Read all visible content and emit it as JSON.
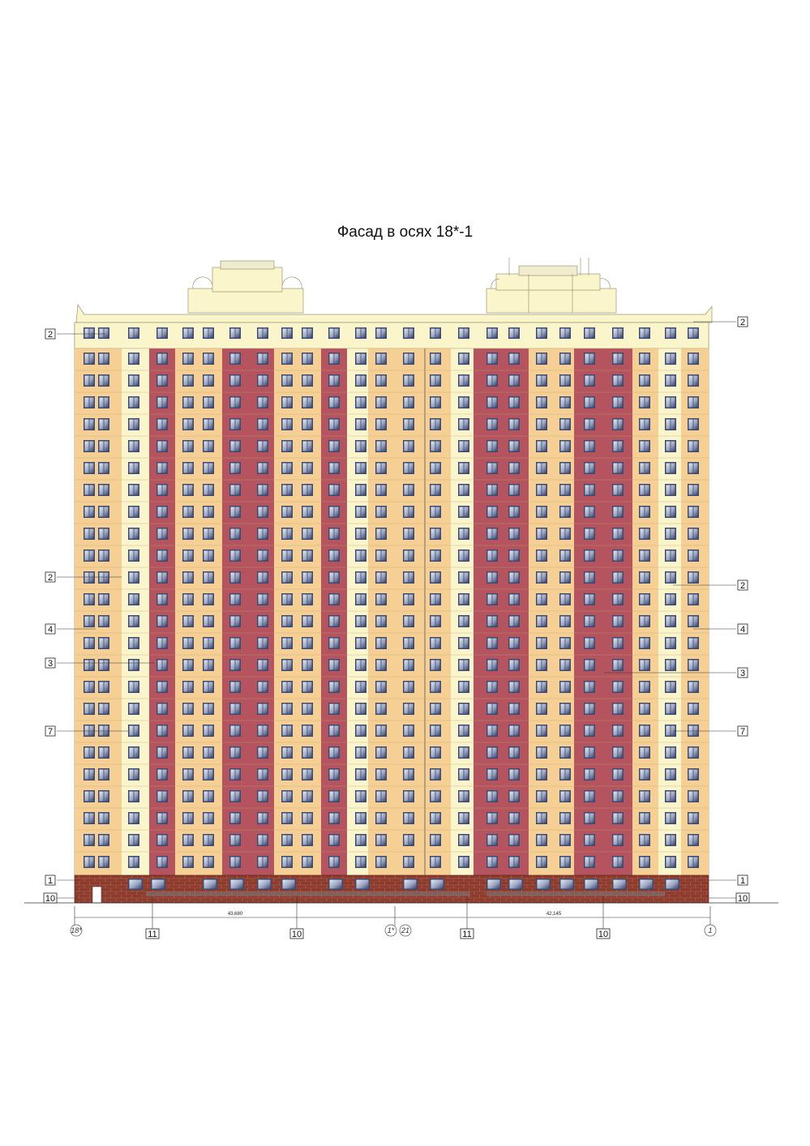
{
  "title": "Фасад в осях 18*-1",
  "colors": {
    "cream": "#fbf5cc",
    "light_orange": "#f6cf94",
    "red": "#b5545e",
    "brick": "#8c3a2b",
    "window_frame": "#3d4a6e",
    "window_glass": "#dfe4ee"
  },
  "floors": 24,
  "callouts": {
    "left": [
      "2",
      "2",
      "4",
      "3",
      "7",
      "1",
      "10"
    ],
    "right": [
      "2",
      "2",
      "4",
      "3",
      "7",
      "1",
      "10"
    ],
    "bottom": [
      "11",
      "10",
      "11",
      "10"
    ]
  },
  "dimensions": {
    "left_span": "43,680",
    "right_span": "42,145"
  },
  "axes": {
    "a": "18*",
    "b": "1*",
    "c": "21",
    "d": "1"
  }
}
